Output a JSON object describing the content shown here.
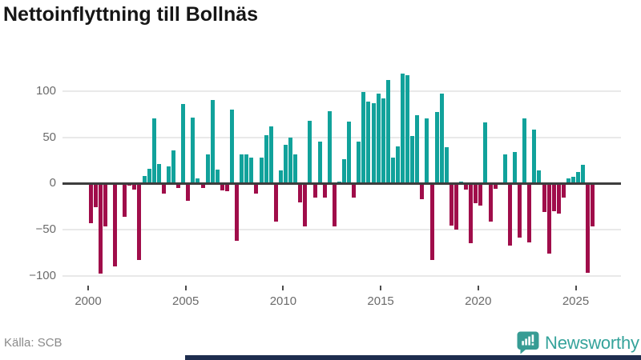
{
  "title": "Nettoinflyttning till Bollnäs",
  "source": {
    "label": "Källa: SCB"
  },
  "brand": {
    "name": "Newsworthy",
    "icon": "newsworthy-speech-bubble-chart-icon",
    "color": "#35a39b"
  },
  "colors": {
    "positive_bar": "#11a29b",
    "negative_bar": "#a00d4a",
    "gridline": "#e9e9e9",
    "zero_line": "#3d3d3d",
    "axis_text": "#6b6b6b",
    "title_text": "#161616",
    "source_text": "#8a8a8a",
    "bottom_strip": "#1e2d4e",
    "background": "#ffffff"
  },
  "chart_data": {
    "type": "bar",
    "title": "Nettoinflyttning till Bollnäs",
    "frequency": "quarterly",
    "start_period": "2000Q1",
    "end_period": "2025Q4",
    "values": [
      -42,
      -25,
      -97,
      -46,
      -1,
      -89,
      -1,
      -35,
      -2,
      -6,
      -82,
      8,
      16,
      70,
      21,
      -10,
      18,
      36,
      -4,
      86,
      -18,
      71,
      5,
      -4,
      31,
      90,
      15,
      -7,
      -8,
      80,
      -61,
      31,
      31,
      28,
      -10,
      28,
      52,
      62,
      -41,
      14,
      42,
      50,
      31,
      -20,
      -46,
      68,
      -15,
      45,
      -15,
      78,
      -46,
      2,
      26,
      67,
      -15,
      45,
      99,
      89,
      87,
      97,
      92,
      112,
      28,
      40,
      119,
      117,
      51,
      74,
      -16,
      70,
      -82,
      77,
      97,
      39,
      -45,
      -49,
      2,
      -6,
      -64,
      -21,
      -23,
      66,
      -41,
      -5,
      -1,
      31,
      -67,
      34,
      -58,
      70,
      -63,
      58,
      14,
      -30,
      -75,
      -29,
      -32,
      -15,
      5,
      7,
      12,
      20,
      -96,
      -46
    ],
    "x_tick_labels": [
      "2000",
      "2005",
      "2010",
      "2015",
      "2020",
      "2025"
    ],
    "y_ticks": [
      100,
      50,
      0,
      -50,
      -100
    ],
    "y_tick_labels": [
      "100",
      "50",
      "0",
      "−50",
      "−100"
    ],
    "ylim": [
      -105,
      125
    ],
    "grid": "horizontal-light",
    "legend": "none",
    "positive_color": "#11a29b",
    "negative_color": "#a00d4a"
  }
}
